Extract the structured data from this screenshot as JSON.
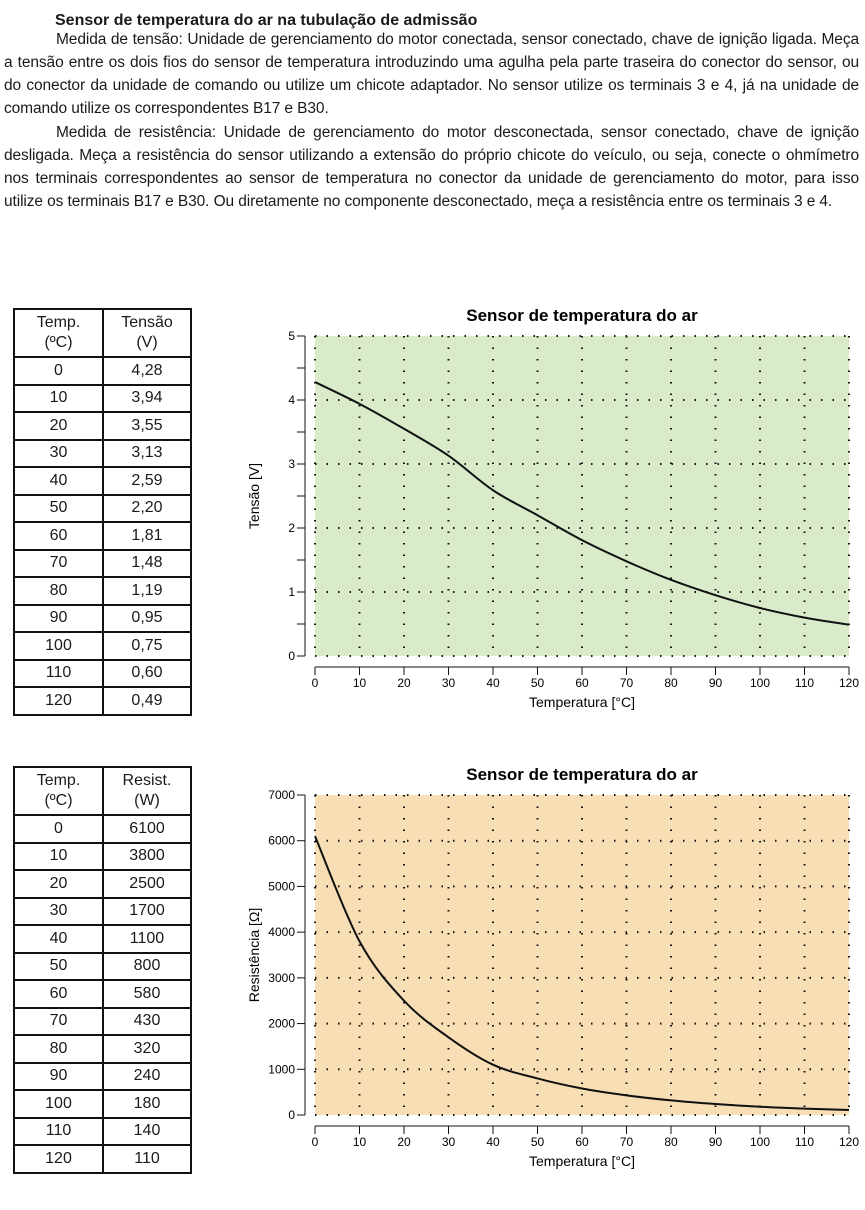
{
  "heading": "Sensor de temperatura do ar na tubulação de admissão",
  "paragraphs": [
    "Medida de tensão: Unidade de gerenciamento do motor conectada, sensor conectado, chave de ignição ligada. Meça a tensão entre os dois fios do sensor de temperatura introduzindo uma agulha pela parte traseira do conector do sensor, ou do conector da unidade de comando ou utilize um chicote adaptador. No sensor utilize os terminais 3 e 4, já na unidade de comando utilize os correspondentes B17 e B30.",
    "Medida de resistência: Unidade de gerenciamento do motor desconectada, sensor conectado, chave de ignição desligada. Meça a resistência do sensor utilizando a extensão do próprio chicote do veículo, ou seja, conecte o ohmímetro nos terminais correspondentes ao sensor de temperatura no conector da unidade de gerenciamento do motor, para isso utilize os terminais B17 e B30. Ou diretamente no componente desconectado, meça a resistência entre os terminais 3 e 4."
  ],
  "table_voltage": {
    "headers": [
      "Temp.\n(ºC)",
      "Tensão\n(V)"
    ],
    "rows": [
      [
        "0",
        "4,28"
      ],
      [
        "10",
        "3,94"
      ],
      [
        "20",
        "3,55"
      ],
      [
        "30",
        "3,13"
      ],
      [
        "40",
        "2,59"
      ],
      [
        "50",
        "2,20"
      ],
      [
        "60",
        "1,81"
      ],
      [
        "70",
        "1,48"
      ],
      [
        "80",
        "1,19"
      ],
      [
        "90",
        "0,95"
      ],
      [
        "100",
        "0,75"
      ],
      [
        "110",
        "0,60"
      ],
      [
        "120",
        "0,49"
      ]
    ]
  },
  "table_resistance": {
    "headers": [
      "Temp.\n(ºC)",
      "Resist.\n(W)"
    ],
    "rows": [
      [
        "0",
        "6100"
      ],
      [
        "10",
        "3800"
      ],
      [
        "20",
        "2500"
      ],
      [
        "30",
        "1700"
      ],
      [
        "40",
        "1100"
      ],
      [
        "50",
        "800"
      ],
      [
        "60",
        "580"
      ],
      [
        "70",
        "430"
      ],
      [
        "80",
        "320"
      ],
      [
        "90",
        "240"
      ],
      [
        "100",
        "180"
      ],
      [
        "110",
        "140"
      ],
      [
        "120",
        "110"
      ]
    ]
  },
  "chart_data": [
    {
      "type": "line",
      "title": "Sensor de temperatura do ar",
      "xlabel": "Temperatura [°C]",
      "ylabel": "Tensão [V]",
      "xlim": [
        0,
        120
      ],
      "ylim": [
        0,
        5
      ],
      "xticks": [
        0,
        10,
        20,
        30,
        40,
        50,
        60,
        70,
        80,
        90,
        100,
        110,
        120
      ],
      "yticks": [
        0,
        1,
        2,
        3,
        4,
        5
      ],
      "grid": true,
      "background": "#d9ebc9",
      "x": [
        0,
        10,
        20,
        30,
        40,
        50,
        60,
        70,
        80,
        90,
        100,
        110,
        120
      ],
      "y": [
        4.28,
        3.94,
        3.55,
        3.13,
        2.59,
        2.2,
        1.81,
        1.48,
        1.19,
        0.95,
        0.75,
        0.6,
        0.49
      ]
    },
    {
      "type": "line",
      "title": "Sensor de temperatura do ar",
      "xlabel": "Temperatura [°C]",
      "ylabel": "Resistência [Ω]",
      "xlim": [
        0,
        120
      ],
      "ylim": [
        0,
        7000
      ],
      "xticks": [
        0,
        10,
        20,
        30,
        40,
        50,
        60,
        70,
        80,
        90,
        100,
        110,
        120
      ],
      "yticks": [
        0,
        1000,
        2000,
        3000,
        4000,
        5000,
        6000,
        7000
      ],
      "grid": true,
      "background": "#f8deb5",
      "x": [
        0,
        10,
        20,
        30,
        40,
        50,
        60,
        70,
        80,
        90,
        100,
        110,
        120
      ],
      "y": [
        6100,
        3800,
        2500,
        1700,
        1100,
        800,
        580,
        430,
        320,
        240,
        180,
        140,
        110
      ]
    }
  ]
}
